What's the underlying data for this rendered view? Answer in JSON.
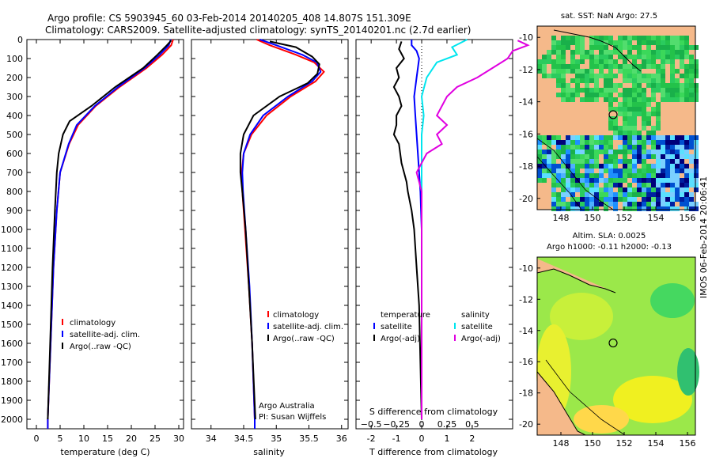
{
  "header": {
    "line1": "Argo profile: CS 5903945_60 03-Feb-2014 20140205_408 14.807S 151.309E",
    "line2": "Climatology: CARS2009. Satellite-adjusted climatology: synTS_20140201.nc (2.7d earlier)"
  },
  "side_label": "IMOS 06-Feb-2014 20:06:41",
  "colors": {
    "climatology": "#ff0000",
    "satellite": "#0000ff",
    "argo": "#000000",
    "salinity_sat": "#00e5ee",
    "salinity_argo": "#e000e0"
  },
  "chart_data": [
    {
      "type": "line",
      "id": "temperature",
      "xlabel": "temperature (deg C)",
      "ylabel": "",
      "xlim": [
        -2,
        31
      ],
      "ylim": [
        2050,
        0
      ],
      "xticks": [
        0,
        5,
        10,
        15,
        20,
        25,
        30
      ],
      "yticks": [
        0,
        100,
        200,
        300,
        400,
        500,
        600,
        700,
        800,
        900,
        1000,
        1100,
        1200,
        1300,
        1400,
        1500,
        1600,
        1700,
        1800,
        1900,
        2000
      ],
      "legend": [
        "climatology",
        "satellite-adj. clim.",
        "Argo(..raw -QC)"
      ],
      "series": [
        {
          "name": "climatology",
          "depth": [
            0,
            30,
            80,
            150,
            250,
            350,
            450,
            550,
            700,
            900,
            1200,
            1600,
            2000,
            2050
          ],
          "values": [
            28.8,
            28.4,
            26.5,
            23.2,
            17.5,
            12.5,
            8.8,
            6.9,
            5.0,
            4.3,
            3.6,
            3.0,
            2.4,
            2.4
          ]
        },
        {
          "name": "satellite-adj. clim.",
          "depth": [
            0,
            30,
            80,
            150,
            250,
            350,
            450,
            550,
            700,
            900,
            1200,
            1600,
            2000,
            2050
          ],
          "values": [
            28.3,
            27.9,
            26.0,
            22.8,
            17.2,
            12.3,
            8.5,
            6.8,
            5.0,
            4.3,
            3.6,
            3.0,
            2.4,
            2.4
          ]
        },
        {
          "name": "Argo(..raw -QC)",
          "depth": [
            5,
            30,
            80,
            150,
            250,
            350,
            430,
            500,
            600,
            700,
            900,
            1200,
            1600,
            2000
          ],
          "values": [
            28.4,
            27.5,
            25.5,
            22.5,
            16.6,
            11.6,
            7.0,
            5.6,
            4.7,
            4.3,
            3.9,
            3.4,
            2.9,
            2.4
          ]
        }
      ]
    },
    {
      "type": "line",
      "id": "salinity",
      "xlabel": "salinity",
      "ylabel": "",
      "xlim": [
        33.7,
        36.1
      ],
      "ylim": [
        2050,
        0
      ],
      "xticks": [
        34,
        34.5,
        35,
        35.5,
        36
      ],
      "legend": [
        "climatology",
        "satellite-adj. clim.",
        "Argo(..raw -QC)"
      ],
      "series": [
        {
          "name": "climatology",
          "depth": [
            0,
            30,
            80,
            120,
            170,
            220,
            300,
            400,
            500,
            600,
            700,
            800,
            1000,
            1300,
            1600,
            2000,
            2050
          ],
          "values": [
            34.7,
            34.9,
            35.3,
            35.58,
            35.73,
            35.6,
            35.22,
            34.85,
            34.62,
            34.5,
            34.47,
            34.48,
            34.52,
            34.58,
            34.63,
            34.67,
            34.67
          ]
        },
        {
          "name": "satellite-adj. clim.",
          "depth": [
            0,
            30,
            80,
            120,
            170,
            220,
            300,
            400,
            500,
            600,
            700,
            800,
            1000,
            1300,
            1600,
            2000,
            2050
          ],
          "values": [
            34.75,
            35.0,
            35.4,
            35.62,
            35.68,
            35.55,
            35.18,
            34.8,
            34.6,
            34.5,
            34.48,
            34.49,
            34.53,
            34.59,
            34.63,
            34.67,
            34.67
          ]
        },
        {
          "name": "Argo(..raw -QC)",
          "depth": [
            10,
            40,
            90,
            130,
            180,
            230,
            300,
            400,
            500,
            600,
            700,
            800,
            1000,
            1300,
            1600,
            2000
          ],
          "values": [
            34.9,
            35.3,
            35.55,
            35.66,
            35.63,
            35.48,
            35.05,
            34.65,
            34.5,
            34.45,
            34.45,
            34.48,
            34.53,
            34.58,
            34.63,
            34.68
          ]
        }
      ]
    },
    {
      "type": "line",
      "id": "difference",
      "xlabel": "T difference from climatology",
      "xlabel2": "S difference from climatology",
      "xlim": [
        -2.6,
        3.6
      ],
      "ylim": [
        2050,
        0
      ],
      "xticks": [
        -2,
        -1,
        0,
        1,
        2
      ],
      "xticks2": [
        -0.5,
        -0.25,
        0,
        0.25,
        0.5
      ],
      "xticks2_labels": [
        "−0.5",
        "−0.25",
        "0",
        "0.25",
        "0.5"
      ],
      "legend_t_title": "temperature",
      "legend_s_title": "salinity",
      "legend": [
        "satellite",
        "Argo(-adj)",
        "satellite",
        "Argo(-adj)"
      ],
      "series": [
        {
          "name": "temperature satellite",
          "depth": [
            0,
            30,
            60,
            100,
            200,
            300,
            400,
            500,
            600,
            700,
            800,
            1000,
            1500,
            2000
          ],
          "values": [
            -0.4,
            -0.4,
            -0.2,
            -0.1,
            -0.2,
            -0.3,
            -0.25,
            -0.2,
            -0.15,
            -0.1,
            -0.05,
            0,
            0,
            0
          ]
        },
        {
          "name": "temperature Argo(-adj)",
          "depth": [
            10,
            50,
            100,
            150,
            200,
            250,
            300,
            350,
            400,
            450,
            500,
            550,
            600,
            650,
            700,
            750,
            800,
            900,
            1000,
            1200,
            1400,
            1700,
            2000
          ],
          "values": [
            -0.8,
            -0.9,
            -0.7,
            -1.0,
            -0.9,
            -1.1,
            -0.9,
            -0.8,
            -1.0,
            -1.0,
            -1.1,
            -0.9,
            -0.85,
            -0.8,
            -0.7,
            -0.6,
            -0.55,
            -0.4,
            -0.3,
            -0.2,
            -0.1,
            -0.05,
            0
          ]
        },
        {
          "name": "salinity satellite",
          "depth": [
            0,
            40,
            80,
            120,
            200,
            300,
            400,
            500,
            600,
            700,
            800,
            1000,
            1500,
            2000
          ],
          "values": [
            0.45,
            0.3,
            0.35,
            0.15,
            0.05,
            0.0,
            0.02,
            0.0,
            0.0,
            0.0,
            0.0,
            0.0,
            0.0,
            0.0
          ]
        },
        {
          "name": "salinity Argo(-adj)",
          "depth": [
            5,
            30,
            60,
            100,
            150,
            200,
            250,
            300,
            350,
            400,
            450,
            500,
            550,
            600,
            650,
            700,
            800,
            1000,
            1500,
            2000
          ],
          "values": [
            0.95,
            1.05,
            0.9,
            0.85,
            0.7,
            0.55,
            0.35,
            0.25,
            0.2,
            0.15,
            0.25,
            0.15,
            0.2,
            0.05,
            0.0,
            -0.05,
            0.0,
            0.0,
            0.0,
            0.0
          ]
        }
      ],
      "zero_line_style": "dotted"
    },
    {
      "type": "heatmap",
      "id": "sst_map",
      "title": "sat. SST: NaN Argo: 27.5",
      "xticks": [
        148,
        150,
        152,
        154,
        156
      ],
      "yticks": [
        -10,
        -12,
        -14,
        -16,
        -18,
        -20
      ],
      "xlim": [
        146.5,
        156.5
      ],
      "ylim": [
        -20.7,
        -9.3
      ],
      "marker": {
        "lon": 151.3,
        "lat": -14.8
      }
    },
    {
      "type": "heatmap",
      "id": "sla_map",
      "title_line1": "Altim. SLA: 0.0025",
      "title_line2": "Argo h1000: -0.11 h2000: -0.13",
      "xticks": [
        148,
        150,
        152,
        154,
        156
      ],
      "yticks": [
        -10,
        -12,
        -14,
        -16,
        -18,
        -20
      ],
      "xlim": [
        146.5,
        156.5
      ],
      "ylim": [
        -20.7,
        -9.3
      ],
      "marker": {
        "lon": 151.3,
        "lat": -14.8
      }
    }
  ],
  "text_notes": {
    "credit_line1": "Argo Australia",
    "credit_line2": "PI: Susan Wijffels"
  }
}
